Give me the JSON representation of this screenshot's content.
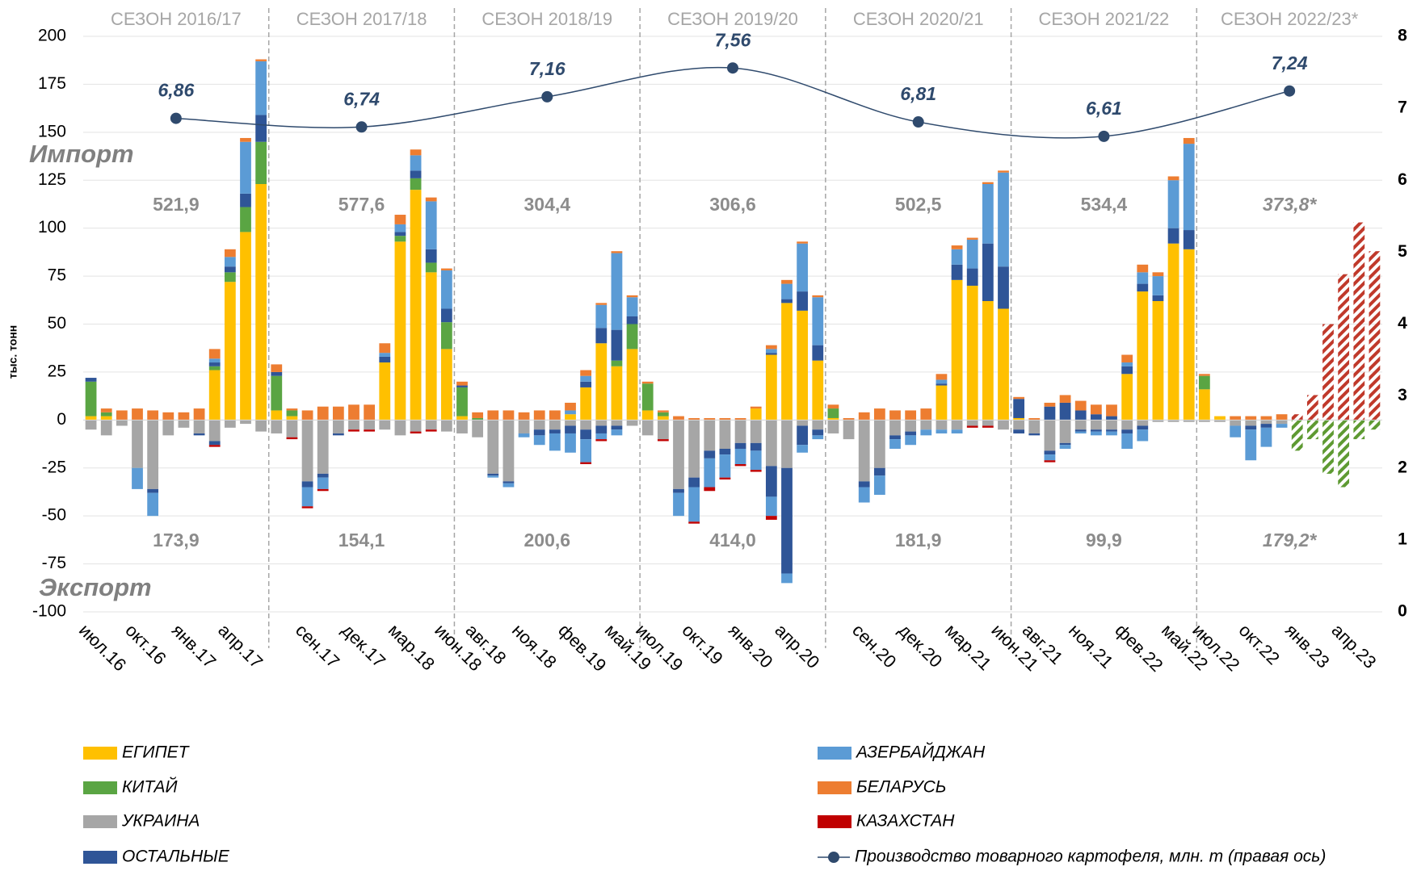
{
  "chart_data": {
    "type": "bar",
    "y_label": "тыс. тонн",
    "import_label": "Импорт",
    "export_label": "Экспорт",
    "categories": [
      "июл.16",
      null,
      null,
      "окт.16",
      null,
      null,
      "янв.17",
      null,
      null,
      "апр.17",
      null,
      null,
      null,
      null,
      "сен.17",
      null,
      null,
      "дек.17",
      null,
      null,
      "мар.18",
      null,
      null,
      "июн.18",
      null,
      "авг.18",
      null,
      null,
      "ноя.18",
      null,
      null,
      "фев.19",
      null,
      null,
      "май.19",
      null,
      "июл.19",
      null,
      null,
      "окт.19",
      null,
      null,
      "янв.20",
      null,
      null,
      "апр.20",
      null,
      null,
      null,
      null,
      "сен.20",
      null,
      null,
      "дек.20",
      null,
      null,
      "мар.21",
      null,
      null,
      "июн.21",
      null,
      "авг.21",
      null,
      null,
      "ноя.21",
      null,
      null,
      "фев.22",
      null,
      null,
      "май.22",
      null,
      "июл.22",
      null,
      null,
      "окт.22",
      null,
      null,
      "янв.23",
      null,
      null,
      "апр.23",
      null,
      null
    ],
    "series": [
      {
        "name": "ЕГИПЕТ",
        "color": "#ffc000",
        "values": [
          2,
          2,
          0,
          0,
          0,
          0,
          0,
          0,
          26,
          72,
          98,
          123,
          5,
          2,
          0,
          0,
          0,
          0,
          0,
          30,
          93,
          120,
          77,
          37,
          2,
          0,
          0,
          0,
          0,
          0,
          0,
          3,
          17,
          40,
          28,
          37,
          5,
          2,
          0,
          0,
          0,
          0,
          0,
          6,
          34,
          61,
          57,
          31,
          1,
          0,
          0,
          0,
          0,
          0,
          0,
          18,
          73,
          70,
          62,
          58,
          1,
          0,
          0,
          0,
          0,
          0,
          0,
          24,
          67,
          62,
          92,
          89,
          16,
          2,
          0,
          0,
          0,
          0,
          0,
          0,
          0,
          0,
          0,
          0
        ]
      },
      {
        "name": "КИТАЙ",
        "color": "#5aa543",
        "values": [
          18,
          2,
          0,
          0,
          0,
          0,
          0,
          0,
          2,
          5,
          13,
          22,
          18,
          3,
          0,
          0,
          0,
          0,
          0,
          0,
          3,
          6,
          5,
          14,
          15,
          1,
          0,
          0,
          0,
          0,
          0,
          0,
          0,
          0,
          3,
          13,
          14,
          2,
          0,
          0,
          0,
          0,
          0,
          0,
          0,
          0,
          0,
          0,
          5,
          0,
          0,
          0,
          0,
          0,
          0,
          0,
          0,
          0,
          0,
          0,
          0,
          0,
          0,
          0,
          0,
          0,
          0,
          0,
          0,
          0,
          0,
          0,
          7,
          0,
          0,
          0,
          0,
          0,
          0,
          0,
          0,
          0,
          0,
          0
        ]
      },
      {
        "name": "УКРАИНА",
        "color": "#a6a6a6",
        "export": [
          -5,
          -8,
          -3,
          -25,
          -36,
          -8,
          -4,
          -7,
          -11,
          -4,
          -2,
          -6,
          -7,
          -9,
          -32,
          -28,
          -7,
          -5,
          -5,
          -5,
          -8,
          -6,
          -5,
          -6,
          -7,
          -9,
          -28,
          -32,
          -7,
          -5,
          -5,
          -3,
          -5,
          -3,
          -3,
          -3,
          -8,
          -10,
          -36,
          -30,
          -16,
          -15,
          -12,
          -12,
          -24,
          -25,
          -3,
          -5,
          -7,
          -10,
          -32,
          -25,
          -8,
          -6,
          -5,
          -5,
          -5,
          -3,
          -3,
          -5,
          -5,
          -7,
          -16,
          -12,
          -5,
          -5,
          -5,
          -5,
          -3,
          -1,
          -1,
          -1,
          -1,
          -1,
          -3,
          -3,
          -2,
          -2,
          0,
          0,
          0,
          0,
          0,
          0
        ]
      },
      {
        "name": "ОСТАЛЬНЫЕ",
        "color": "#2f5597",
        "values": [
          2,
          0,
          0,
          0,
          0,
          0,
          0,
          0,
          2,
          3,
          7,
          14,
          2,
          0,
          0,
          0,
          0,
          0,
          0,
          3,
          2,
          4,
          7,
          7,
          1,
          0,
          0,
          0,
          0,
          0,
          0,
          0,
          3,
          8,
          16,
          4,
          0,
          0,
          0,
          0,
          0,
          0,
          0,
          0,
          1,
          2,
          10,
          8,
          0,
          0,
          0,
          0,
          0,
          0,
          0,
          1,
          8,
          9,
          30,
          22,
          10,
          0,
          7,
          9,
          5,
          3,
          2,
          4,
          4,
          3,
          8,
          10,
          0,
          0,
          0,
          0,
          0,
          0,
          0,
          0,
          0,
          0,
          0,
          0
        ],
        "export": [
          0,
          0,
          0,
          0,
          -2,
          0,
          0,
          -1,
          -2,
          0,
          0,
          0,
          0,
          0,
          -3,
          -2,
          -1,
          0,
          0,
          0,
          0,
          0,
          0,
          0,
          0,
          0,
          -1,
          -1,
          0,
          -3,
          -2,
          -4,
          -5,
          -4,
          -2,
          0,
          0,
          0,
          -2,
          -5,
          -4,
          -3,
          -3,
          -4,
          -16,
          -55,
          -10,
          -3,
          0,
          0,
          -3,
          -4,
          -2,
          -2,
          0,
          0,
          0,
          0,
          0,
          0,
          -2,
          -1,
          -2,
          -1,
          -1,
          -1,
          -1,
          -2,
          -2,
          0,
          0,
          0,
          0,
          0,
          0,
          -2,
          -2,
          0,
          0,
          0,
          0,
          0,
          0,
          0
        ]
      },
      {
        "name": "АЗЕРБАЙДЖАН",
        "color": "#5b9bd5",
        "values": [
          0,
          0,
          0,
          0,
          0,
          0,
          0,
          0,
          2,
          5,
          27,
          28,
          0,
          0,
          0,
          0,
          0,
          0,
          0,
          2,
          4,
          8,
          25,
          20,
          0,
          0,
          0,
          0,
          0,
          0,
          0,
          2,
          3,
          12,
          40,
          10,
          0,
          0,
          0,
          0,
          0,
          0,
          0,
          0,
          2,
          8,
          25,
          25,
          0,
          0,
          0,
          0,
          0,
          0,
          0,
          2,
          8,
          15,
          31,
          49,
          0,
          0,
          0,
          0,
          0,
          0,
          0,
          2,
          6,
          10,
          25,
          45,
          0,
          0,
          0,
          0,
          0,
          0,
          0,
          0,
          0,
          0,
          0,
          0
        ],
        "export": [
          0,
          0,
          0,
          -11,
          -12,
          0,
          0,
          0,
          0,
          0,
          0,
          0,
          0,
          0,
          -10,
          -6,
          0,
          0,
          0,
          0,
          0,
          0,
          0,
          0,
          0,
          0,
          -1,
          -2,
          -2,
          -5,
          -9,
          -10,
          -12,
          -3,
          -3,
          0,
          0,
          0,
          -12,
          -18,
          -15,
          -12,
          -8,
          -10,
          -10,
          -5,
          -4,
          -2,
          0,
          0,
          -8,
          -10,
          -5,
          -5,
          -3,
          -2,
          -2,
          0,
          0,
          0,
          0,
          0,
          -3,
          -2,
          -1,
          -2,
          -2,
          -8,
          -6,
          0,
          0,
          0,
          0,
          0,
          -6,
          -16,
          -10,
          -2,
          0,
          0,
          0,
          0,
          0,
          0
        ]
      },
      {
        "name": "БЕЛАРУСЬ",
        "color": "#ed7d31",
        "values": [
          0,
          2,
          5,
          6,
          5,
          4,
          4,
          6,
          5,
          4,
          2,
          1,
          4,
          1,
          5,
          7,
          7,
          8,
          8,
          5,
          5,
          3,
          2,
          1,
          2,
          3,
          5,
          5,
          4,
          5,
          5,
          4,
          3,
          1,
          1,
          1,
          1,
          1,
          2,
          1,
          1,
          1,
          1,
          1,
          2,
          2,
          1,
          1,
          2,
          1,
          4,
          6,
          5,
          5,
          6,
          3,
          2,
          1,
          1,
          1,
          1,
          1,
          2,
          4,
          5,
          5,
          6,
          4,
          4,
          2,
          2,
          3,
          1,
          0,
          2,
          2,
          2,
          3,
          0,
          0,
          0,
          0,
          0,
          0
        ]
      },
      {
        "name": "КАЗАХСТАН",
        "color": "#c00000",
        "export": [
          0,
          0,
          0,
          0,
          0,
          0,
          0,
          0,
          -1,
          0,
          0,
          0,
          0,
          -1,
          -1,
          -1,
          0,
          -1,
          -1,
          0,
          0,
          -1,
          -1,
          0,
          0,
          0,
          0,
          0,
          0,
          0,
          0,
          0,
          -1,
          -1,
          0,
          0,
          0,
          -1,
          0,
          -1,
          -2,
          -1,
          -1,
          -1,
          -2,
          0,
          0,
          0,
          0,
          0,
          0,
          0,
          0,
          0,
          0,
          0,
          0,
          -1,
          -1,
          0,
          0,
          0,
          -1,
          0,
          0,
          0,
          0,
          0,
          0,
          0,
          0,
          0,
          0,
          0,
          0,
          0,
          0,
          0,
          0,
          0,
          0,
          0,
          0,
          0
        ]
      },
      {
        "color": "#c0392b",
        "hatched": true,
        "values": [
          null,
          null,
          null,
          null,
          null,
          null,
          null,
          null,
          null,
          null,
          null,
          null,
          null,
          null,
          null,
          null,
          null,
          null,
          null,
          null,
          null,
          null,
          null,
          null,
          null,
          null,
          null,
          null,
          null,
          null,
          null,
          null,
          null,
          null,
          null,
          null,
          null,
          null,
          null,
          null,
          null,
          null,
          null,
          null,
          null,
          null,
          null,
          null,
          null,
          null,
          null,
          null,
          null,
          null,
          null,
          null,
          null,
          null,
          null,
          null,
          null,
          null,
          null,
          null,
          null,
          null,
          null,
          null,
          null,
          null,
          null,
          null,
          null,
          null,
          null,
          null,
          null,
          null,
          3,
          13,
          50,
          76,
          103,
          88
        ]
      },
      {
        "color": "#5e9a32",
        "hatched": true,
        "export": [
          null,
          null,
          null,
          null,
          null,
          null,
          null,
          null,
          null,
          null,
          null,
          null,
          null,
          null,
          null,
          null,
          null,
          null,
          null,
          null,
          null,
          null,
          null,
          null,
          null,
          null,
          null,
          null,
          null,
          null,
          null,
          null,
          null,
          null,
          null,
          null,
          null,
          null,
          null,
          null,
          null,
          null,
          null,
          null,
          null,
          null,
          null,
          null,
          null,
          null,
          null,
          null,
          null,
          null,
          null,
          null,
          null,
          null,
          null,
          null,
          null,
          null,
          null,
          null,
          null,
          null,
          null,
          null,
          null,
          null,
          null,
          null,
          null,
          null,
          null,
          null,
          null,
          null,
          -16,
          -10,
          -28,
          -35,
          -10,
          -5
        ]
      }
    ],
    "line": {
      "name": "Производство товарного картофеля, млн. т (правая ось)",
      "color": "#2f4a6d",
      "axis": "y2",
      "values": [
        6.86,
        6.74,
        7.16,
        7.56,
        6.81,
        6.61,
        7.24
      ],
      "value_labels": [
        "6,86",
        "6,74",
        "7,16",
        "7,56",
        "6,81",
        "6,61",
        "7,24"
      ]
    },
    "seasons": [
      {
        "label": "СЕЗОН 2016/17",
        "import": "521,9",
        "export": "173,9"
      },
      {
        "label": "СЕЗОН 2017/18",
        "import": "577,6",
        "export": "154,1"
      },
      {
        "label": "СЕЗОН 2018/19",
        "import": "304,4",
        "export": "200,6"
      },
      {
        "label": "СЕЗОН 2019/20",
        "import": "306,6",
        "export": "414,0"
      },
      {
        "label": "СЕЗОН 2020/21",
        "import": "502,5",
        "export": "181,9"
      },
      {
        "label": "СЕЗОН 2021/22",
        "import": "534,4",
        "export": "99,9"
      },
      {
        "label": "СЕЗОН 2022/23*",
        "import": "373,8*",
        "export": "179,2*"
      }
    ],
    "ylim": [
      -100,
      200
    ],
    "yticks": [
      -100,
      -75,
      -50,
      -25,
      0,
      25,
      50,
      75,
      100,
      125,
      150,
      175,
      200
    ],
    "y2lim": [
      0,
      8
    ],
    "y2ticks": [
      0,
      1,
      2,
      3,
      4,
      5,
      6,
      7,
      8
    ],
    "grid": true
  }
}
